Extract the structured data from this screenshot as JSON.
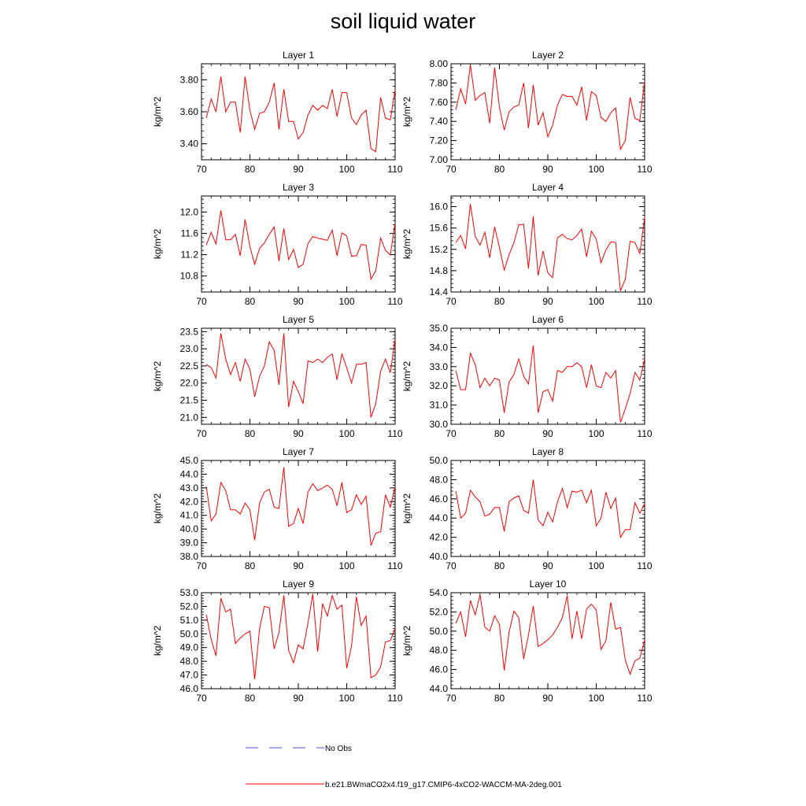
{
  "title": "soil liquid water",
  "legend": {
    "no_obs_label": "No Obs",
    "model_label": "b.e21.BWmaCO2x4.f19_g17.CMIP6-4xCO2-WACCM-MA-2deg.001",
    "no_obs_color": "#4a50d0",
    "model_color": "#ff0000"
  },
  "chart_data": [
    {
      "type": "line",
      "title": "Layer 1",
      "ylabel": "kg/m^2",
      "xlim": [
        70,
        110
      ],
      "ylim": [
        3.3,
        3.9
      ],
      "xticks": [
        70,
        80,
        90,
        100,
        110
      ],
      "yticks": [
        3.4,
        3.6,
        3.8
      ],
      "yminor": 0.04,
      "ydecimals": 2,
      "x": [
        71,
        72,
        73,
        74,
        75,
        76,
        77,
        78,
        79,
        80,
        81,
        82,
        83,
        84,
        85,
        86,
        87,
        88,
        89,
        90,
        91,
        92,
        93,
        94,
        95,
        96,
        97,
        98,
        99,
        100,
        101,
        102,
        103,
        104,
        105,
        106,
        107,
        108,
        109,
        110
      ],
      "values": [
        3.56,
        3.68,
        3.6,
        3.82,
        3.6,
        3.66,
        3.66,
        3.47,
        3.82,
        3.61,
        3.49,
        3.59,
        3.6,
        3.66,
        3.78,
        3.49,
        3.74,
        3.54,
        3.54,
        3.43,
        3.47,
        3.58,
        3.64,
        3.61,
        3.64,
        3.62,
        3.74,
        3.57,
        3.72,
        3.72,
        3.56,
        3.52,
        3.58,
        3.61,
        3.37,
        3.35,
        3.69,
        3.56,
        3.55,
        3.74
      ]
    },
    {
      "type": "line",
      "title": "Layer 2",
      "ylabel": "kg/m^2",
      "xlim": [
        70,
        110
      ],
      "ylim": [
        7.0,
        8.0
      ],
      "xticks": [
        70,
        80,
        90,
        100,
        110
      ],
      "yticks": [
        7.0,
        7.2,
        7.4,
        7.6,
        7.8,
        8.0
      ],
      "yminor": 0.04,
      "ydecimals": 2,
      "x": [
        71,
        72,
        73,
        74,
        75,
        76,
        77,
        78,
        79,
        80,
        81,
        82,
        83,
        84,
        85,
        86,
        87,
        88,
        89,
        90,
        91,
        92,
        93,
        94,
        95,
        96,
        97,
        98,
        99,
        100,
        101,
        102,
        103,
        104,
        105,
        106,
        107,
        108,
        109,
        110
      ],
      "values": [
        7.52,
        7.74,
        7.58,
        7.99,
        7.62,
        7.67,
        7.7,
        7.38,
        7.96,
        7.55,
        7.31,
        7.5,
        7.55,
        7.57,
        7.8,
        7.33,
        7.78,
        7.36,
        7.49,
        7.24,
        7.36,
        7.57,
        7.68,
        7.66,
        7.66,
        7.57,
        7.76,
        7.41,
        7.71,
        7.67,
        7.44,
        7.4,
        7.49,
        7.54,
        7.11,
        7.2,
        7.65,
        7.43,
        7.41,
        7.82
      ]
    },
    {
      "type": "line",
      "title": "Layer 3",
      "ylabel": "kg/m^2",
      "xlim": [
        70,
        110
      ],
      "ylim": [
        10.5,
        12.3
      ],
      "xticks": [
        70,
        80,
        90,
        100,
        110
      ],
      "yticks": [
        10.8,
        11.2,
        11.6,
        12.0
      ],
      "yminor": 0.08,
      "ydecimals": 1,
      "x": [
        71,
        72,
        73,
        74,
        75,
        76,
        77,
        78,
        79,
        80,
        81,
        82,
        83,
        84,
        85,
        86,
        87,
        88,
        89,
        90,
        91,
        92,
        93,
        94,
        95,
        96,
        97,
        98,
        99,
        100,
        101,
        102,
        103,
        104,
        105,
        106,
        107,
        108,
        109,
        110
      ],
      "values": [
        11.38,
        11.62,
        11.4,
        12.03,
        11.48,
        11.48,
        11.58,
        11.18,
        11.86,
        11.35,
        11.02,
        11.32,
        11.42,
        11.58,
        11.72,
        11.08,
        11.69,
        11.11,
        11.3,
        10.96,
        11.02,
        11.41,
        11.54,
        11.51,
        11.49,
        11.47,
        11.66,
        11.18,
        11.61,
        11.55,
        11.17,
        11.18,
        11.39,
        11.38,
        10.74,
        10.9,
        11.51,
        11.28,
        11.2,
        11.8
      ]
    },
    {
      "type": "line",
      "title": "Layer 4",
      "ylabel": "kg/m^2",
      "xlim": [
        70,
        110
      ],
      "ylim": [
        14.4,
        16.2
      ],
      "xticks": [
        70,
        80,
        90,
        100,
        110
      ],
      "yticks": [
        14.4,
        14.8,
        15.2,
        15.6,
        16.0
      ],
      "yminor": 0.08,
      "ydecimals": 1,
      "x": [
        71,
        72,
        73,
        74,
        75,
        76,
        77,
        78,
        79,
        80,
        81,
        82,
        83,
        84,
        85,
        86,
        87,
        88,
        89,
        90,
        91,
        92,
        93,
        94,
        95,
        96,
        97,
        98,
        99,
        100,
        101,
        102,
        103,
        104,
        105,
        106,
        107,
        108,
        109,
        110
      ],
      "values": [
        15.33,
        15.46,
        15.21,
        16.05,
        15.44,
        15.28,
        15.52,
        15.04,
        15.62,
        15.24,
        14.81,
        15.1,
        15.33,
        15.66,
        15.67,
        14.84,
        15.82,
        14.71,
        15.17,
        14.76,
        14.67,
        15.42,
        15.48,
        15.4,
        15.38,
        15.46,
        15.58,
        15.06,
        15.54,
        15.39,
        14.95,
        15.19,
        15.34,
        15.33,
        14.42,
        14.64,
        15.35,
        15.33,
        15.12,
        15.8
      ]
    },
    {
      "type": "line",
      "title": "Layer 5",
      "ylabel": "kg/m^2",
      "xlim": [
        70,
        110
      ],
      "ylim": [
        20.8,
        23.6
      ],
      "xticks": [
        70,
        80,
        90,
        100,
        110
      ],
      "yticks": [
        21.0,
        21.5,
        22.0,
        22.5,
        23.0,
        23.5
      ],
      "yminor": 0.1,
      "ydecimals": 1,
      "x": [
        71,
        72,
        73,
        74,
        75,
        76,
        77,
        78,
        79,
        80,
        81,
        82,
        83,
        84,
        85,
        86,
        87,
        88,
        89,
        90,
        91,
        92,
        93,
        94,
        95,
        96,
        97,
        98,
        99,
        100,
        101,
        102,
        103,
        104,
        105,
        106,
        107,
        108,
        109,
        110
      ],
      "values": [
        22.55,
        22.45,
        22.15,
        23.45,
        22.7,
        22.25,
        22.6,
        22.05,
        22.7,
        22.4,
        21.6,
        22.2,
        22.5,
        23.2,
        22.95,
        21.95,
        23.45,
        21.3,
        22.05,
        21.75,
        21.4,
        22.65,
        22.6,
        22.7,
        22.6,
        22.75,
        22.85,
        22.1,
        22.85,
        22.45,
        22.0,
        22.55,
        22.55,
        22.6,
        21.0,
        21.4,
        22.35,
        22.7,
        22.3,
        23.3
      ]
    },
    {
      "type": "line",
      "title": "Layer 6",
      "ylabel": "kg/m^2",
      "xlim": [
        70,
        110
      ],
      "ylim": [
        30.0,
        35.0
      ],
      "xticks": [
        70,
        80,
        90,
        100,
        110
      ],
      "yticks": [
        30.0,
        31.0,
        32.0,
        33.0,
        34.0,
        35.0
      ],
      "yminor": 0.2,
      "ydecimals": 1,
      "x": [
        71,
        72,
        73,
        74,
        75,
        76,
        77,
        78,
        79,
        80,
        81,
        82,
        83,
        84,
        85,
        86,
        87,
        88,
        89,
        90,
        91,
        92,
        93,
        94,
        95,
        96,
        97,
        98,
        99,
        100,
        101,
        102,
        103,
        104,
        105,
        106,
        107,
        108,
        109,
        110
      ],
      "values": [
        32.8,
        31.8,
        31.8,
        33.7,
        33.1,
        31.9,
        32.4,
        32.0,
        32.4,
        32.3,
        30.6,
        32.2,
        32.6,
        33.4,
        32.5,
        32.1,
        34.1,
        30.6,
        31.7,
        31.8,
        31.2,
        32.8,
        32.7,
        33.0,
        33.0,
        33.2,
        33.0,
        31.9,
        33.1,
        32.0,
        31.9,
        32.7,
        32.4,
        32.8,
        30.1,
        30.8,
        31.6,
        32.7,
        32.3,
        33.4
      ]
    },
    {
      "type": "line",
      "title": "Layer 7",
      "ylabel": "kg/m^2",
      "xlim": [
        70,
        110
      ],
      "ylim": [
        38.0,
        45.0
      ],
      "xticks": [
        70,
        80,
        90,
        100,
        110
      ],
      "yticks": [
        38.0,
        39.0,
        40.0,
        41.0,
        42.0,
        43.0,
        44.0,
        45.0
      ],
      "yminor": 0.2,
      "ydecimals": 1,
      "x": [
        71,
        72,
        73,
        74,
        75,
        76,
        77,
        78,
        79,
        80,
        81,
        82,
        83,
        84,
        85,
        86,
        87,
        88,
        89,
        90,
        91,
        92,
        93,
        94,
        95,
        96,
        97,
        98,
        99,
        100,
        101,
        102,
        103,
        104,
        105,
        106,
        107,
        108,
        109,
        110
      ],
      "values": [
        43.1,
        40.6,
        41.1,
        43.4,
        42.8,
        41.4,
        41.4,
        41.1,
        41.9,
        41.4,
        39.2,
        41.9,
        42.7,
        42.9,
        41.6,
        41.5,
        44.5,
        40.2,
        40.4,
        41.5,
        40.4,
        42.7,
        43.3,
        42.8,
        43.0,
        43.2,
        42.9,
        41.7,
        43.4,
        41.2,
        41.4,
        42.5,
        41.8,
        42.4,
        38.8,
        39.7,
        39.8,
        42.5,
        41.6,
        43.1
      ]
    },
    {
      "type": "line",
      "title": "Layer 8",
      "ylabel": "kg/m^2",
      "xlim": [
        70,
        110
      ],
      "ylim": [
        40.0,
        50.0
      ],
      "xticks": [
        70,
        80,
        90,
        100,
        110
      ],
      "yticks": [
        40.0,
        42.0,
        44.0,
        46.0,
        48.0,
        50.0
      ],
      "yminor": 0.4,
      "ydecimals": 1,
      "x": [
        71,
        72,
        73,
        74,
        75,
        76,
        77,
        78,
        79,
        80,
        81,
        82,
        83,
        84,
        85,
        86,
        87,
        88,
        89,
        90,
        91,
        92,
        93,
        94,
        95,
        96,
        97,
        98,
        99,
        100,
        101,
        102,
        103,
        104,
        105,
        106,
        107,
        108,
        109,
        110
      ],
      "values": [
        46.8,
        44.0,
        44.5,
        46.9,
        46.2,
        45.7,
        44.2,
        44.4,
        45.1,
        45.1,
        42.6,
        45.7,
        46.1,
        46.3,
        44.8,
        44.5,
        48.0,
        43.8,
        43.2,
        44.6,
        43.6,
        45.7,
        47.1,
        45.1,
        46.8,
        46.7,
        46.9,
        45.6,
        46.9,
        43.2,
        44.0,
        46.7,
        45.0,
        46.1,
        42.0,
        42.8,
        42.8,
        45.6,
        44.5,
        45.5
      ]
    },
    {
      "type": "line",
      "title": "Layer 9",
      "ylabel": "kg/m^2",
      "xlim": [
        70,
        110
      ],
      "ylim": [
        46.0,
        53.0
      ],
      "xticks": [
        70,
        80,
        90,
        100,
        110
      ],
      "yticks": [
        46.0,
        47.0,
        48.0,
        49.0,
        50.0,
        51.0,
        52.0,
        53.0
      ],
      "yminor": 0.2,
      "ydecimals": 1,
      "x": [
        71,
        72,
        73,
        74,
        75,
        76,
        77,
        78,
        79,
        80,
        81,
        82,
        83,
        84,
        85,
        86,
        87,
        88,
        89,
        90,
        91,
        92,
        93,
        94,
        95,
        96,
        97,
        98,
        99,
        100,
        101,
        102,
        103,
        104,
        105,
        106,
        107,
        108,
        109,
        110
      ],
      "values": [
        51.4,
        49.6,
        48.4,
        52.6,
        51.6,
        51.8,
        49.3,
        49.7,
        50.0,
        50.2,
        46.7,
        50.4,
        52.0,
        51.9,
        48.9,
        50.1,
        52.8,
        48.8,
        47.9,
        49.2,
        48.9,
        50.8,
        52.9,
        48.7,
        52.2,
        51.3,
        52.8,
        51.8,
        52.1,
        47.5,
        49.1,
        52.7,
        50.6,
        51.3,
        46.8,
        47.0,
        47.6,
        49.4,
        49.5,
        50.4
      ]
    },
    {
      "type": "line",
      "title": "Layer 10",
      "ylabel": "kg/m^2",
      "xlim": [
        70,
        110
      ],
      "ylim": [
        44.0,
        54.0
      ],
      "xticks": [
        70,
        80,
        90,
        100,
        110
      ],
      "yticks": [
        44.0,
        46.0,
        48.0,
        50.0,
        52.0,
        54.0
      ],
      "yminor": 0.4,
      "ydecimals": 1,
      "x": [
        71,
        72,
        73,
        74,
        75,
        76,
        77,
        78,
        79,
        80,
        81,
        82,
        83,
        84,
        85,
        86,
        87,
        88,
        89,
        90,
        91,
        92,
        93,
        94,
        95,
        96,
        97,
        98,
        99,
        100,
        101,
        102,
        103,
        104,
        105,
        106,
        107,
        108,
        109,
        110
      ],
      "values": [
        50.8,
        52.0,
        49.4,
        53.2,
        51.7,
        53.8,
        50.4,
        50.0,
        51.6,
        50.7,
        45.9,
        49.9,
        52.1,
        51.4,
        47.1,
        49.6,
        52.6,
        48.4,
        48.7,
        49.1,
        49.6,
        50.4,
        51.4,
        53.7,
        49.2,
        52.1,
        49.2,
        52.3,
        52.8,
        52.2,
        48.1,
        49.0,
        53.0,
        50.2,
        50.4,
        47.0,
        45.5,
        46.9,
        47.2,
        49.1
      ]
    }
  ]
}
